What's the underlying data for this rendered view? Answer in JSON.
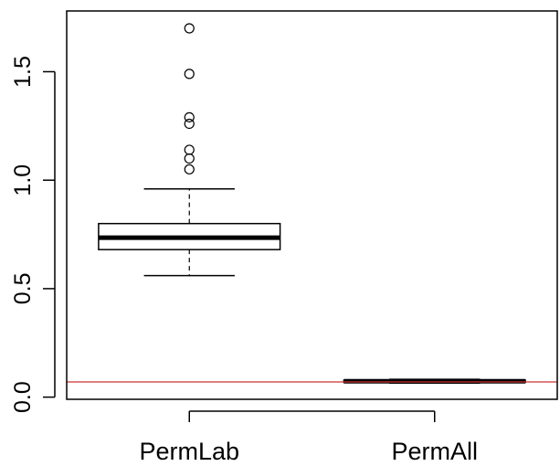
{
  "chart_data": {
    "type": "box",
    "title": "",
    "xlabel": "",
    "ylabel": "",
    "ylim": [
      -0.01,
      1.78
    ],
    "y_ticks": [
      0.0,
      0.5,
      1.0,
      1.5
    ],
    "y_tick_labels": [
      "0.0",
      "0.5",
      "1.0",
      "1.5"
    ],
    "categories": [
      "PermLab",
      "PermAll"
    ],
    "boxes": [
      {
        "name": "PermLab",
        "whisker_low": 0.56,
        "q1": 0.68,
        "median": 0.735,
        "q3": 0.8,
        "whisker_high": 0.96,
        "outliers": [
          1.05,
          1.1,
          1.14,
          1.26,
          1.29,
          1.49,
          1.7
        ]
      },
      {
        "name": "PermAll",
        "whisker_low": 0.065,
        "q1": 0.068,
        "median": 0.073,
        "q3": 0.078,
        "whisker_high": 0.082,
        "outliers": []
      }
    ],
    "reference_line": {
      "y": 0.07,
      "color": "#cc3333"
    },
    "grid": false,
    "legend": "none"
  }
}
